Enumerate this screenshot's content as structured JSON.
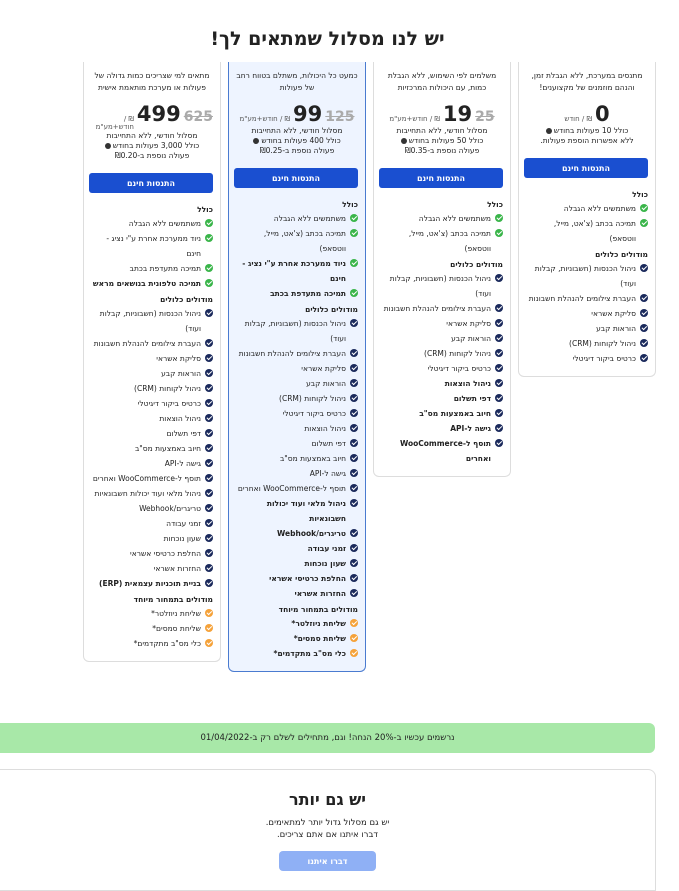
{
  "header": {
    "title": "יש לנו מסלול שמתאים לך!"
  },
  "cards": [
    {
      "highlight": false,
      "description": "מתנסים במערכת, ללא הגבלת זמן, והנהם מוזמנים של מקצוענים!",
      "price": "0",
      "unit": "₪ / חודש",
      "quota": "כולל 10 פעולות בחודש",
      "extra": "ללא אפשרות הוספת פעולות.",
      "button": "התנסות חינם",
      "groups": [
        {
          "title": "כולל",
          "items": [
            {
              "text": "משתמשים ללא הגבלה",
              "icon": "green"
            },
            {
              "text": "תמיכה בכתב (צ'אט, מייל, ווטסאפ)",
              "icon": "green"
            }
          ]
        },
        {
          "title": "מודולים כלולים",
          "items": [
            {
              "text": "ניהול הכנסות (חשבוניות, קבלות ועוד)",
              "icon": "blue"
            },
            {
              "text": "העברת צילומים להנהלת חשבונות",
              "icon": "blue"
            },
            {
              "text": "סליקת אשראי",
              "icon": "blue"
            },
            {
              "text": "הוראות קבע",
              "icon": "blue"
            },
            {
              "text": "ניהול לקוחות (CRM)",
              "icon": "blue"
            },
            {
              "text": "כרטיס ביקור דיגיטלי",
              "icon": "blue"
            }
          ]
        }
      ]
    },
    {
      "highlight": false,
      "description": "משלמים לפי השימוש, ללא הגבלת כמות, עם היכולות המרכזיות",
      "price": "19",
      "old_price": "25",
      "unit": "₪ / חודש+מע\"מ",
      "billing": "מסלול חודשי, ללא התחייבות",
      "quota": "כולל 50 פעולות בחודש",
      "extra": "פעולה נוספת ב-₪0.35",
      "button": "התנסות חינם",
      "groups": [
        {
          "title": "כולל",
          "items": [
            {
              "text": "משתמשים ללא הגבלה",
              "icon": "green"
            },
            {
              "text": "תמיכה בכתב (צ'אט, מייל, ווטסאפ)",
              "icon": "green"
            }
          ]
        },
        {
          "title": "מודולים כלולים",
          "items": [
            {
              "text": "ניהול הכנסות (חשבוניות, קבלות ועוד)",
              "icon": "blue"
            },
            {
              "text": "העברת צילומים להנהלת חשבונות",
              "icon": "blue"
            },
            {
              "text": "סליקת אשראי",
              "icon": "blue"
            },
            {
              "text": "הוראות קבע",
              "icon": "blue"
            },
            {
              "text": "ניהול לקוחות (CRM)",
              "icon": "blue"
            },
            {
              "text": "כרטיס ביקור דיגיטלי",
              "icon": "blue"
            },
            {
              "text": "ניהול הוצאות",
              "icon": "blue",
              "bold": true
            },
            {
              "text": "דפי תשלום",
              "icon": "blue",
              "bold": true
            },
            {
              "text": "חיוב באמצעות מס\"ב",
              "icon": "blue",
              "bold": true
            },
            {
              "text": "גישה ל-API",
              "icon": "blue",
              "bold": true
            },
            {
              "text": "תוסף ל-WooCommerce ואחרים",
              "icon": "blue",
              "bold": true
            }
          ]
        }
      ]
    },
    {
      "highlight": true,
      "description": "כמעט כל היכולות, משתלם בטווח רחב של פעולות",
      "price": "99",
      "old_price": "125",
      "unit": "₪ / חודש+מע\"מ",
      "billing": "מסלול חודשי, ללא התחייבות",
      "quota": "כולל 400 פעולות בחודש",
      "extra": "פעולה נוספת ב-₪0.25",
      "button": "התנסות חינם",
      "groups": [
        {
          "title": "כולל",
          "items": [
            {
              "text": "משתמשים ללא הגבלה",
              "icon": "green"
            },
            {
              "text": "תמיכה בכתב (צ'אט, מייל, ווטסאפ)",
              "icon": "green"
            },
            {
              "text": "ניוד ממערכת אחרת ע\"י נציג - חינם",
              "icon": "green",
              "bold": true
            },
            {
              "text": "תמיכה מתעדפת בכתב",
              "icon": "green",
              "bold": true
            }
          ]
        },
        {
          "title": "מודולים כלולים",
          "items": [
            {
              "text": "ניהול הכנסות (חשבוניות, קבלות ועוד)",
              "icon": "blue"
            },
            {
              "text": "העברת צילומים להנהלת חשבונות",
              "icon": "blue"
            },
            {
              "text": "סליקת אשראי",
              "icon": "blue"
            },
            {
              "text": "הוראות קבע",
              "icon": "blue"
            },
            {
              "text": "ניהול לקוחות (CRM)",
              "icon": "blue"
            },
            {
              "text": "כרטיס ביקור דיגיטלי",
              "icon": "blue"
            },
            {
              "text": "ניהול הוצאות",
              "icon": "blue"
            },
            {
              "text": "דפי תשלום",
              "icon": "blue"
            },
            {
              "text": "חיוב באמצעות מס\"ב",
              "icon": "blue"
            },
            {
              "text": "גישה ל-API",
              "icon": "blue"
            },
            {
              "text": "תוסף ל-WooCommerce ואחרים",
              "icon": "blue"
            },
            {
              "text": "ניהול מלאי ועוד יכולות חשבונאיות",
              "icon": "blue",
              "bold": true
            },
            {
              "text": "טריגרים/Webhook",
              "icon": "blue",
              "bold": true
            },
            {
              "text": "זמני עבודה",
              "icon": "blue",
              "bold": true
            },
            {
              "text": "שעון נוכחות",
              "icon": "blue",
              "bold": true
            },
            {
              "text": "החלפת כרטיסי אשראי",
              "icon": "blue",
              "bold": true
            },
            {
              "text": "החזרות אשראי",
              "icon": "blue",
              "bold": true
            }
          ]
        },
        {
          "title": "מודולים בתמחור מיוחד",
          "items": [
            {
              "text": "שליחת ניוזלטר*",
              "icon": "orange",
              "bold": true
            },
            {
              "text": "שליחת סמסים*",
              "icon": "orange",
              "bold": true
            },
            {
              "text": "כלי מס\"ב מתקדמים*",
              "icon": "orange",
              "bold": true
            }
          ]
        }
      ]
    },
    {
      "highlight": false,
      "description": "מתאים למי שצריכים כמות גדולה של פעולות או מערכת מותאמת אישית",
      "price": "499",
      "old_price": "625",
      "unit": "₪ / חודש+מע\"מ",
      "billing": "מסלול חודשי, ללא התחייבות",
      "quota": "כולל 3,000 פעולות בחודש",
      "extra": "פעולה נוספת ב-₪0.20",
      "button": "התנסות חינם",
      "groups": [
        {
          "title": "כולל",
          "items": [
            {
              "text": "משתמשים ללא הגבלה",
              "icon": "green"
            },
            {
              "text": "ניוד ממערכת אחרת ע\"י נציג - חינם",
              "icon": "green"
            },
            {
              "text": "תמיכה מתעדפת בכתב",
              "icon": "green"
            },
            {
              "text": "תמיכה טלפונית בנושאים מראש",
              "icon": "green",
              "bold": true
            }
          ]
        },
        {
          "title": "מודולים כלולים",
          "items": [
            {
              "text": "ניהול הכנסות (חשבוניות, קבלות ועוד)",
              "icon": "blue"
            },
            {
              "text": "העברת צילומים להנהלת חשבונות",
              "icon": "blue"
            },
            {
              "text": "סליקת אשראי",
              "icon": "blue"
            },
            {
              "text": "הוראות קבע",
              "icon": "blue"
            },
            {
              "text": "ניהול לקוחות (CRM)",
              "icon": "blue"
            },
            {
              "text": "כרטיס ביקור דיגיטלי",
              "icon": "blue"
            },
            {
              "text": "ניהול הוצאות",
              "icon": "blue"
            },
            {
              "text": "דפי תשלום",
              "icon": "blue"
            },
            {
              "text": "חיוב באמצעות מס\"ב",
              "icon": "blue"
            },
            {
              "text": "גישה ל-API",
              "icon": "blue"
            },
            {
              "text": "תוסף ל-WooCommerce ואחרים",
              "icon": "blue"
            },
            {
              "text": "ניהול מלאי ועוד יכולות חשבונאיות",
              "icon": "blue"
            },
            {
              "text": "טריגרים/Webhook",
              "icon": "blue"
            },
            {
              "text": "זמני עבודה",
              "icon": "blue"
            },
            {
              "text": "שעון נוכחות",
              "icon": "blue"
            },
            {
              "text": "החלפת כרטיסי אשראי",
              "icon": "blue"
            },
            {
              "text": "החזרות אשראי",
              "icon": "blue"
            },
            {
              "text": "בניית תוכניות עצמאית (ERP)",
              "icon": "blue",
              "bold": true
            }
          ]
        },
        {
          "title": "מודולים בתמחור מיוחד",
          "items": [
            {
              "text": "שליחת ניוזלטר*",
              "icon": "orange"
            },
            {
              "text": "שליחת סמסים*",
              "icon": "orange"
            },
            {
              "text": "כלי מס\"ב מתקדמים*",
              "icon": "orange"
            }
          ]
        }
      ]
    }
  ],
  "banner": {
    "text": "נרשמים עכשיו ב-20% הנחה! וגם, מתחילים לשלם רק ב-01/04/2022"
  },
  "more": {
    "title": "יש גם יותר",
    "line1": "יש גם מסלול גדול יותר למתאימים.",
    "line2": "דברו איתנו אם אתם צריכים.",
    "button": "דברו איתנו"
  }
}
